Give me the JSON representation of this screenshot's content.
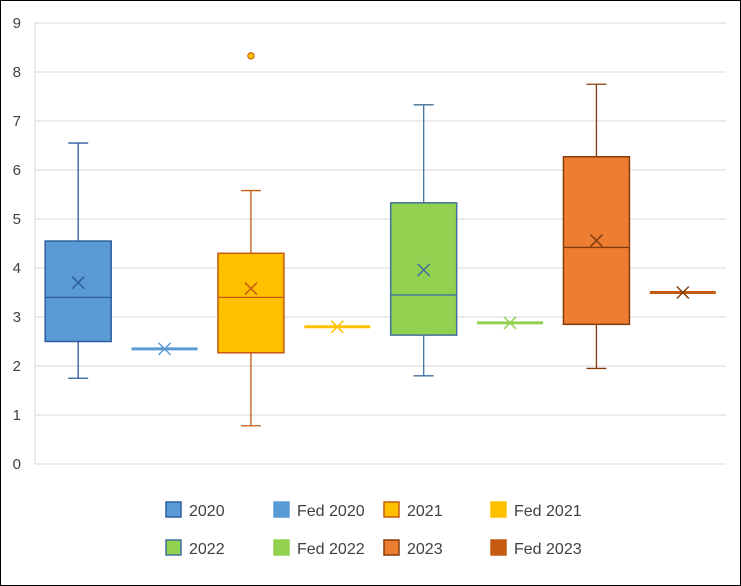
{
  "chart_data": {
    "type": "box",
    "title": "",
    "xlabel": "",
    "ylabel": "",
    "ylim": [
      0,
      9
    ],
    "yticks": [
      "0",
      "1",
      "2",
      "3",
      "4",
      "5",
      "6",
      "7",
      "8",
      "9"
    ],
    "grid": true,
    "legend_position": "bottom",
    "series": [
      {
        "name": "2020",
        "kind": "box",
        "min": 1.75,
        "q1": 2.5,
        "median": 3.4,
        "q3": 4.55,
        "max": 6.55,
        "mean": 3.7,
        "outliers": [],
        "fill": "#5B9BD5",
        "stroke": "#2E5E9E"
      },
      {
        "name": "Fed 2020",
        "kind": "point",
        "value": 2.35,
        "fill": "#5B9BD5",
        "stroke": "#5B9BD5"
      },
      {
        "name": "2021",
        "kind": "box",
        "min": 0.78,
        "q1": 2.27,
        "median": 3.4,
        "q3": 4.3,
        "max": 5.58,
        "mean": 3.58,
        "outliers": [
          8.33
        ],
        "fill": "#FFC000",
        "stroke": "#C55A11"
      },
      {
        "name": "Fed 2021",
        "kind": "point",
        "value": 2.8,
        "fill": "#FFC000",
        "stroke": "#FFC000"
      },
      {
        "name": "2022",
        "kind": "box",
        "min": 1.8,
        "q1": 2.63,
        "median": 3.45,
        "q3": 5.33,
        "max": 7.33,
        "mean": 3.96,
        "outliers": [],
        "fill": "#92D050",
        "stroke": "#41719C"
      },
      {
        "name": "Fed 2022",
        "kind": "point",
        "value": 2.88,
        "fill": "#92D050",
        "stroke": "#92D050"
      },
      {
        "name": "2023",
        "kind": "box",
        "min": 1.95,
        "q1": 2.85,
        "median": 4.42,
        "q3": 6.27,
        "max": 7.75,
        "mean": 4.56,
        "outliers": [],
        "fill": "#ED7D31",
        "stroke": "#843C0C"
      },
      {
        "name": "Fed 2023",
        "kind": "point",
        "value": 3.5,
        "fill": "#C55A11",
        "stroke": "#843C0C"
      }
    ]
  }
}
